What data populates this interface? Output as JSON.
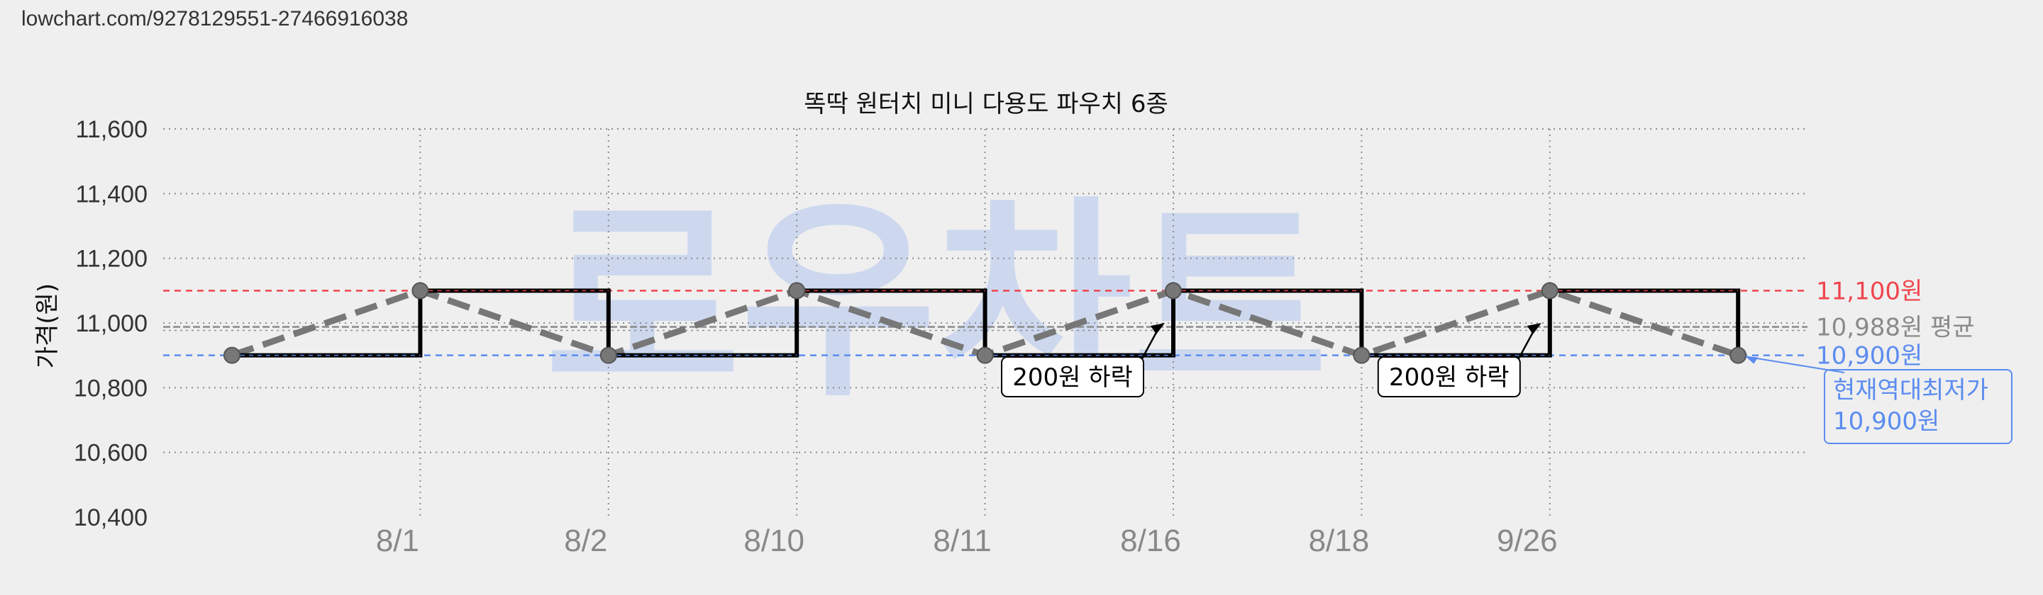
{
  "url_text": "lowchart.com/9278129551-27466916038",
  "watermark": "로우차트",
  "colors": {
    "background": "#efefef",
    "max_line": "#f0454e",
    "avg_line": "#8a8a8a",
    "min_line": "#5b8cf0",
    "step_line": "#000000",
    "trend_line": "#777777",
    "watermark": "#cdd8ef",
    "grid": "#8c8c8c",
    "tick_text": "#333333",
    "x_tick_text": "#888888"
  },
  "chart_data": {
    "type": "line",
    "title": "똑딱 원터치 미니 다용도 파우치 6종",
    "xlabel": "",
    "ylabel": "가격(원)",
    "ylim": [
      10400,
      11600
    ],
    "y_ticks": [
      10400,
      10600,
      10800,
      11000,
      11200,
      11400,
      11600
    ],
    "y_tick_labels": [
      "10,400",
      "10,600",
      "10,800",
      "11,000",
      "11,200",
      "11,400",
      "11,600"
    ],
    "x_tick_labels": [
      "8/1",
      "8/2",
      "8/10",
      "8/11",
      "8/16",
      "8/18",
      "9/26"
    ],
    "grid": true,
    "series": [
      {
        "style": "step",
        "x_index": [
          0,
          1,
          2,
          3,
          4,
          5,
          6,
          7,
          8
        ],
        "values": [
          10900,
          11100,
          10900,
          11100,
          10900,
          11100,
          10900,
          11100,
          10900
        ]
      },
      {
        "style": "dashed-trend",
        "x_index": [
          0,
          1,
          2,
          3,
          4,
          5,
          6,
          7,
          8
        ],
        "values": [
          10900,
          11100,
          10900,
          11100,
          10900,
          11100,
          10900,
          11100,
          10900
        ]
      }
    ],
    "reference_lines": [
      {
        "value": 11100,
        "label": "11,100원",
        "kind": "max"
      },
      {
        "value": 10988,
        "label": "10,988원 평균",
        "kind": "avg"
      },
      {
        "value": 10900,
        "label": "10,900원",
        "kind": "min"
      }
    ],
    "annotations": [
      {
        "text": "200원 하락",
        "x_index": 5,
        "value": 11000
      },
      {
        "text": "200원 하락",
        "x_index": 7,
        "value": 11000
      }
    ],
    "current_lowest": {
      "line1": "현재역대최저가",
      "line2": "10,900원"
    }
  }
}
